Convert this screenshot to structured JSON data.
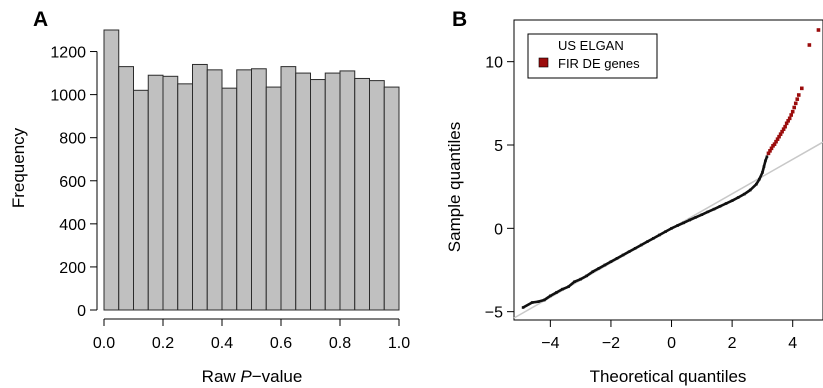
{
  "panels": {
    "a_label": "A",
    "b_label": "B"
  },
  "colors": {
    "bar_fill": "#c0c0c0",
    "bar_stroke": "#2b2b2b",
    "qq_black": "#111111",
    "qq_red": "#9b0c0c",
    "ref_line": "#c8c8c8"
  },
  "chart_data": [
    {
      "type": "bar",
      "title": "",
      "xlabel_prefix": "Raw ",
      "xlabel_italic": "P",
      "xlabel_suffix": "−value",
      "xlabel": "Raw P−value",
      "ylabel": "Frequency",
      "bin_edges": [
        0.0,
        0.05,
        0.1,
        0.15,
        0.2,
        0.25,
        0.3,
        0.35,
        0.4,
        0.45,
        0.5,
        0.55,
        0.6,
        0.65,
        0.7,
        0.75,
        0.8,
        0.85,
        0.9,
        0.95,
        1.0
      ],
      "values": [
        1300,
        1130,
        1020,
        1090,
        1085,
        1050,
        1140,
        1115,
        1030,
        1115,
        1120,
        1035,
        1130,
        1100,
        1070,
        1100,
        1110,
        1075,
        1065,
        1035
      ],
      "xlim": [
        0,
        1
      ],
      "ylim": [
        0,
        1300
      ],
      "xticks": [
        0.0,
        0.2,
        0.4,
        0.6,
        0.8,
        1.0
      ],
      "xtick_labels": [
        "0.0",
        "0.2",
        "0.4",
        "0.6",
        "0.8",
        "1.0"
      ],
      "yticks": [
        0,
        200,
        400,
        600,
        800,
        1000,
        1200
      ],
      "ytick_labels": [
        "0",
        "200",
        "400",
        "600",
        "800",
        "1000",
        "1200"
      ]
    },
    {
      "type": "scatter",
      "title": "",
      "xlabel": "Theoretical quantiles",
      "ylabel": "Sample quantiles",
      "xlim": [
        -5.2,
        5.0
      ],
      "ylim": [
        -5.5,
        12.5
      ],
      "xticks": [
        -4,
        -2,
        0,
        2,
        4
      ],
      "xtick_labels": [
        "−4",
        "−2",
        "0",
        "2",
        "4"
      ],
      "yticks": [
        -5,
        0,
        5,
        10
      ],
      "ytick_labels": [
        "−5",
        "0",
        "5",
        "10"
      ],
      "reference_line": {
        "slope": 1.035,
        "intercept": 0.0
      },
      "legend": {
        "position": "top-left",
        "title": "US ELGAN",
        "entries": [
          "FIR DE genes"
        ]
      },
      "series": [
        {
          "name": "",
          "points": [
            [
              -4.9,
              -4.75
            ],
            [
              -4.6,
              -4.45
            ],
            [
              -4.4,
              -4.4
            ],
            [
              -4.2,
              -4.3
            ],
            [
              -4.0,
              -4.05
            ],
            [
              -3.8,
              -3.85
            ],
            [
              -3.6,
              -3.65
            ],
            [
              -3.4,
              -3.5
            ],
            [
              -3.2,
              -3.2
            ],
            [
              -3.0,
              -3.05
            ],
            [
              -2.8,
              -2.85
            ],
            [
              -2.6,
              -2.6
            ],
            [
              -2.4,
              -2.4
            ],
            [
              -2.2,
              -2.2
            ],
            [
              -2.0,
              -2.0
            ],
            [
              -1.8,
              -1.8
            ],
            [
              -1.6,
              -1.6
            ],
            [
              -1.4,
              -1.4
            ],
            [
              -1.2,
              -1.2
            ],
            [
              -1.0,
              -1.0
            ],
            [
              -0.8,
              -0.8
            ],
            [
              -0.6,
              -0.6
            ],
            [
              -0.4,
              -0.4
            ],
            [
              -0.2,
              -0.2
            ],
            [
              0.0,
              0.0
            ],
            [
              0.2,
              0.17
            ],
            [
              0.4,
              0.33
            ],
            [
              0.6,
              0.5
            ],
            [
              0.8,
              0.66
            ],
            [
              1.0,
              0.82
            ],
            [
              1.2,
              0.99
            ],
            [
              1.4,
              1.15
            ],
            [
              1.6,
              1.32
            ],
            [
              1.8,
              1.49
            ],
            [
              2.0,
              1.66
            ],
            [
              2.2,
              1.85
            ],
            [
              2.4,
              2.05
            ],
            [
              2.6,
              2.3
            ],
            [
              2.8,
              2.65
            ],
            [
              2.9,
              2.95
            ],
            [
              3.0,
              3.35
            ],
            [
              3.05,
              3.7
            ],
            [
              3.1,
              4.05
            ],
            [
              3.15,
              4.3
            ]
          ]
        },
        {
          "name": "FIR DE genes",
          "points": [
            [
              3.2,
              4.5
            ],
            [
              3.25,
              4.65
            ],
            [
              3.3,
              4.8
            ],
            [
              3.35,
              4.95
            ],
            [
              3.4,
              5.05
            ],
            [
              3.45,
              5.2
            ],
            [
              3.5,
              5.35
            ],
            [
              3.55,
              5.5
            ],
            [
              3.6,
              5.65
            ],
            [
              3.65,
              5.8
            ],
            [
              3.7,
              5.95
            ],
            [
              3.75,
              6.1
            ],
            [
              3.8,
              6.3
            ],
            [
              3.85,
              6.45
            ],
            [
              3.9,
              6.6
            ],
            [
              3.95,
              6.8
            ],
            [
              4.0,
              7.0
            ],
            [
              4.05,
              7.25
            ],
            [
              4.1,
              7.5
            ],
            [
              4.15,
              7.75
            ],
            [
              4.2,
              8.0
            ],
            [
              4.3,
              8.4
            ],
            [
              4.55,
              11.0
            ],
            [
              4.85,
              11.9
            ]
          ]
        }
      ]
    }
  ]
}
